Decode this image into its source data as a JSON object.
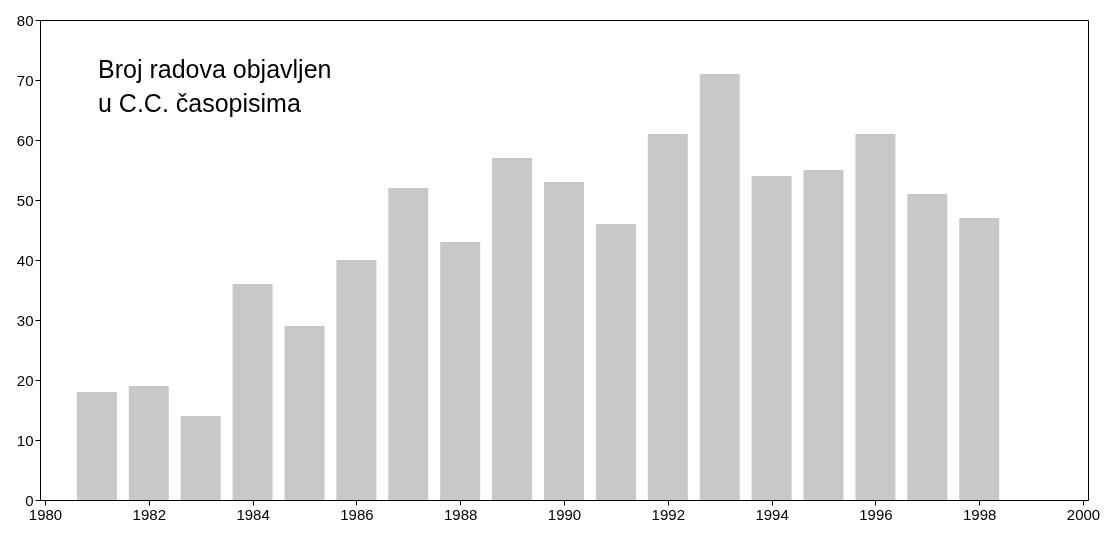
{
  "chart_data": {
    "type": "bar",
    "title": "Broj radova objavljen\nu C.C. časopisima",
    "x": [
      1981,
      1982,
      1983,
      1984,
      1985,
      1986,
      1987,
      1988,
      1989,
      1990,
      1991,
      1992,
      1993,
      1994,
      1995,
      1996,
      1997,
      1998
    ],
    "values": [
      18,
      19,
      14,
      36,
      29,
      40,
      52,
      43,
      57,
      53,
      46,
      61,
      71,
      54,
      55,
      61,
      51,
      47
    ],
    "color": "#c8c8c8",
    "xlim": [
      1980,
      2000
    ],
    "xticks": [
      1980,
      1982,
      1984,
      1986,
      1988,
      1990,
      1992,
      1994,
      1996,
      1998,
      2000
    ],
    "ylim": [
      0,
      80
    ],
    "yticks": [
      0,
      10,
      20,
      30,
      40,
      50,
      60,
      70,
      80
    ],
    "grid": false
  }
}
